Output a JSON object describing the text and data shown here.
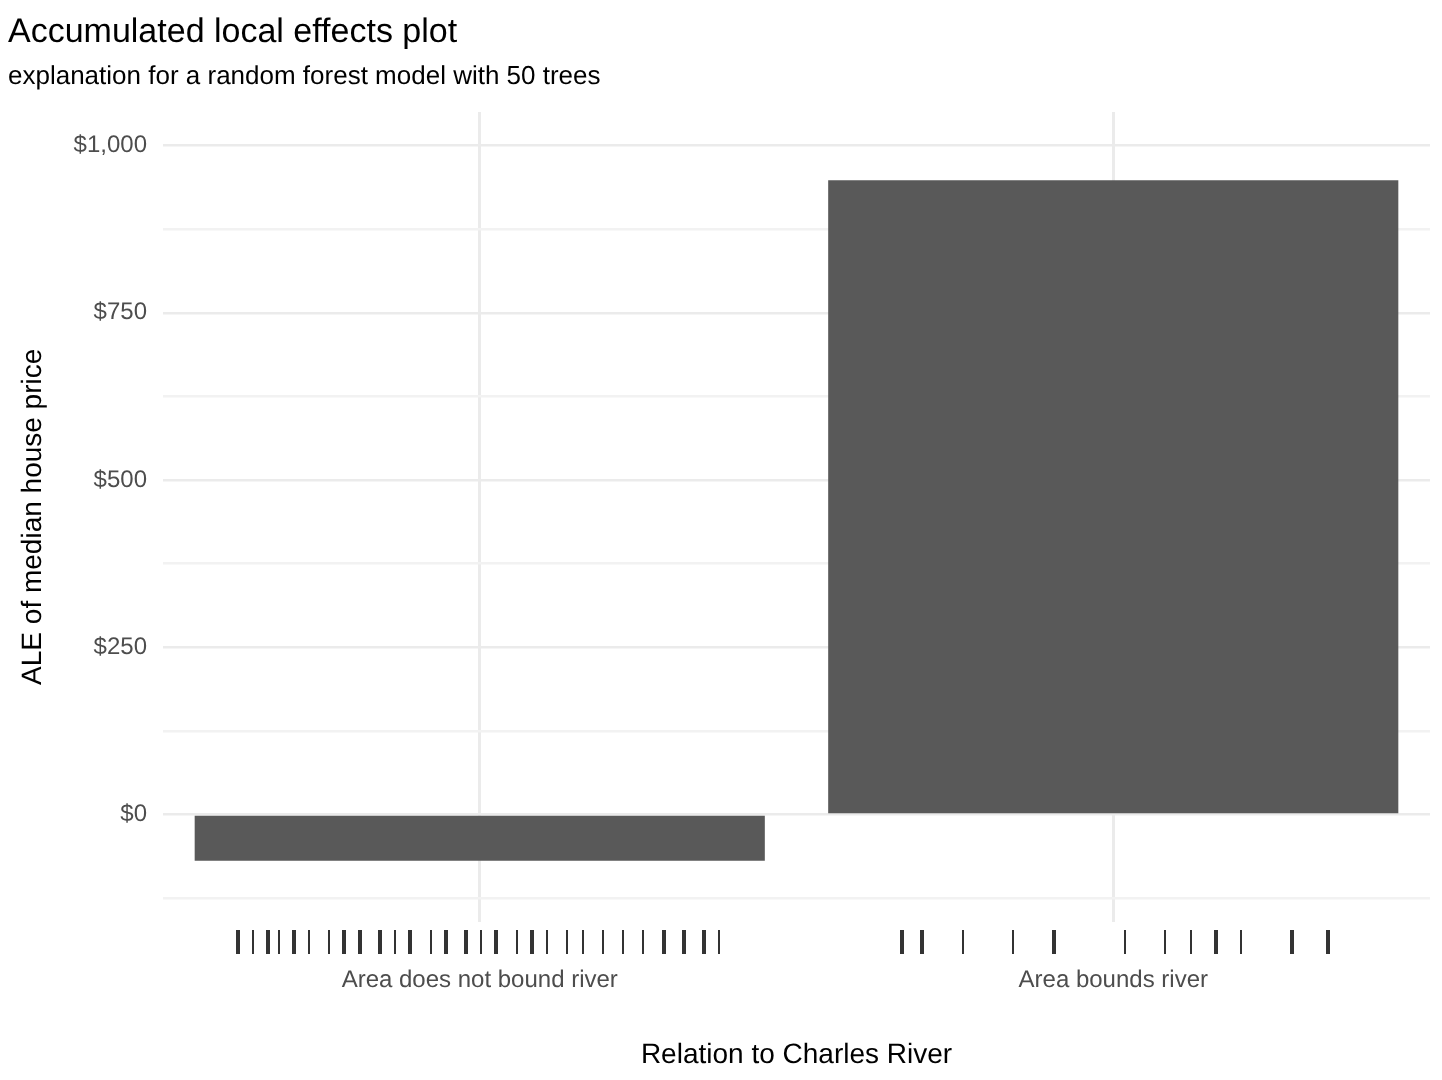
{
  "chart_data": {
    "type": "bar",
    "title": "Accumulated local effects plot",
    "subtitle": "explanation for a random forest model with 50 trees",
    "xlabel": "Relation to Charles River",
    "ylabel": "ALE of median house price",
    "categories": [
      "Area does not bound river",
      "Area bounds river"
    ],
    "values": [
      -69,
      948
    ],
    "color": "#595959",
    "ylim": [
      -160,
      1050
    ],
    "yticks": [
      {
        "value": -125,
        "label": null
      },
      {
        "value": 0,
        "label": "$0"
      },
      {
        "value": 125,
        "label": null
      },
      {
        "value": 250,
        "label": "$250"
      },
      {
        "value": 375,
        "label": null
      },
      {
        "value": 500,
        "label": "$500"
      },
      {
        "value": 625,
        "label": null
      },
      {
        "value": 750,
        "label": "$750"
      },
      {
        "value": 875,
        "label": null
      },
      {
        "value": 1000,
        "label": "$1,000"
      }
    ],
    "grid": true
  }
}
